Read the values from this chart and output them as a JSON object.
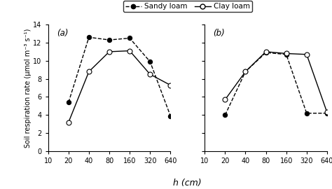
{
  "x_data": [
    20,
    40,
    80,
    160,
    320,
    640
  ],
  "x_ticks": [
    10,
    20,
    40,
    80,
    160,
    320,
    640
  ],
  "panel_a": {
    "sandy_loam": [
      5.4,
      12.6,
      12.3,
      12.5,
      9.9,
      3.9
    ],
    "clay_loam": [
      3.2,
      8.8,
      11.0,
      11.1,
      8.5,
      7.3
    ]
  },
  "panel_b": {
    "sandy_loam": [
      4.0,
      8.8,
      10.9,
      10.7,
      4.2,
      4.2
    ],
    "clay_loam": [
      5.7,
      8.8,
      11.0,
      10.8,
      10.7,
      4.3
    ]
  },
  "ylabel": "Soil respiration rate (μmol m⁻³ s⁻¹)",
  "xlabel": "h (cm)",
  "ylim": [
    0,
    14
  ],
  "yticks": [
    0,
    2,
    4,
    6,
    8,
    10,
    12,
    14
  ],
  "label_a": "(a)",
  "label_b": "(b)",
  "legend_sandy": "Sandy loam",
  "legend_clay": "Clay loam"
}
